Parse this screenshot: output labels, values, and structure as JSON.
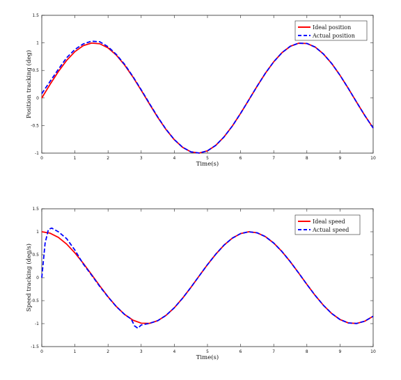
{
  "colors": {
    "ideal": "#ff0000",
    "actual": "#0000ff",
    "axis": "#262626"
  },
  "chart_data": [
    {
      "type": "line",
      "xlabel": "Time(s)",
      "ylabel": "Position tracking (deg)",
      "xlim": [
        0,
        10
      ],
      "ylim": [
        -1,
        1.5
      ],
      "xticks": [
        0,
        1,
        2,
        3,
        4,
        5,
        6,
        7,
        8,
        9,
        10
      ],
      "yticks": [
        -1,
        -0.5,
        0,
        0.5,
        1,
        1.5
      ],
      "grid": false,
      "legend_position": "top-right",
      "x": [
        0,
        0.25,
        0.5,
        0.75,
        1,
        1.25,
        1.5,
        1.75,
        2,
        2.25,
        2.5,
        2.75,
        3,
        3.25,
        3.5,
        3.75,
        4,
        4.25,
        4.5,
        4.75,
        5,
        5.25,
        5.5,
        5.75,
        6,
        6.25,
        6.5,
        6.75,
        7,
        7.25,
        7.5,
        7.75,
        8,
        8.25,
        8.5,
        8.75,
        9,
        9.25,
        9.5,
        9.75,
        10
      ],
      "series": [
        {
          "name": "Ideal position",
          "style": "solid",
          "values": [
            0,
            0.247,
            0.479,
            0.682,
            0.841,
            0.949,
            0.997,
            0.984,
            0.909,
            0.778,
            0.598,
            0.382,
            0.141,
            -0.108,
            -0.351,
            -0.572,
            -0.757,
            -0.895,
            -0.978,
            -0.999,
            -0.959,
            -0.859,
            -0.706,
            -0.509,
            -0.279,
            -0.033,
            0.215,
            0.451,
            0.657,
            0.823,
            0.938,
            0.994,
            0.989,
            0.924,
            0.798,
            0.625,
            0.412,
            0.174,
            -0.075,
            -0.32,
            -0.544
          ]
        },
        {
          "name": "Actual position",
          "style": "dashed",
          "values": [
            0.08,
            0.3,
            0.52,
            0.73,
            0.88,
            0.98,
            1.03,
            1.02,
            0.93,
            0.79,
            0.61,
            0.39,
            0.15,
            -0.1,
            -0.345,
            -0.568,
            -0.755,
            -0.894,
            -0.977,
            -0.999,
            -0.959,
            -0.859,
            -0.706,
            -0.509,
            -0.279,
            -0.033,
            0.215,
            0.451,
            0.657,
            0.823,
            0.938,
            0.994,
            0.989,
            0.924,
            0.798,
            0.625,
            0.412,
            0.174,
            -0.075,
            -0.32,
            -0.544
          ]
        }
      ]
    },
    {
      "type": "line",
      "xlabel": "Time(s)",
      "ylabel": "Speed tracking (deg/s)",
      "xlim": [
        0,
        10
      ],
      "ylim": [
        -1.5,
        1.5
      ],
      "xticks": [
        0,
        1,
        2,
        3,
        4,
        5,
        6,
        7,
        8,
        9,
        10
      ],
      "yticks": [
        -1.5,
        -1,
        -0.5,
        0,
        0.5,
        1,
        1.5
      ],
      "grid": false,
      "legend_position": "top-right",
      "x": [
        0,
        0.1,
        0.2,
        0.3,
        0.5,
        0.75,
        1,
        1.25,
        1.5,
        1.75,
        2,
        2.25,
        2.5,
        2.7,
        2.8,
        2.9,
        3,
        3.25,
        3.5,
        3.75,
        4,
        4.25,
        4.5,
        4.75,
        5,
        5.25,
        5.5,
        5.75,
        6,
        6.25,
        6.5,
        6.75,
        7,
        7.25,
        7.5,
        7.75,
        8,
        8.25,
        8.5,
        8.75,
        9,
        9.25,
        9.5,
        9.75,
        10
      ],
      "series": [
        {
          "name": "Ideal speed",
          "style": "solid",
          "x": [
            0,
            0.25,
            0.5,
            0.75,
            1,
            1.25,
            1.5,
            1.75,
            2,
            2.25,
            2.5,
            2.75,
            3,
            3.25,
            3.5,
            3.75,
            4,
            4.25,
            4.5,
            4.75,
            5,
            5.25,
            5.5,
            5.75,
            6,
            6.25,
            6.5,
            6.75,
            7,
            7.25,
            7.5,
            7.75,
            8,
            8.25,
            8.5,
            8.75,
            9,
            9.25,
            9.5,
            9.75,
            10
          ],
          "values": [
            1,
            0.969,
            0.878,
            0.732,
            0.54,
            0.315,
            0.071,
            -0.178,
            -0.416,
            -0.628,
            -0.801,
            -0.924,
            -0.99,
            -0.994,
            -0.936,
            -0.82,
            -0.654,
            -0.446,
            -0.211,
            0.038,
            0.284,
            0.511,
            0.709,
            0.861,
            0.96,
            1,
            0.977,
            0.893,
            0.754,
            0.568,
            0.347,
            0.104,
            -0.146,
            -0.386,
            -0.602,
            -0.78,
            -0.911,
            -0.985,
            -0.997,
            -0.946,
            -0.839
          ]
        },
        {
          "name": "Actual speed",
          "style": "dashed",
          "values": [
            0,
            0.75,
            1.05,
            1.08,
            1.0,
            0.85,
            0.6,
            0.3,
            0.06,
            -0.19,
            -0.42,
            -0.63,
            -0.8,
            -0.9,
            -1.05,
            -1.1,
            -1.03,
            -0.994,
            -0.936,
            -0.82,
            -0.654,
            -0.446,
            -0.211,
            0.038,
            0.284,
            0.511,
            0.709,
            0.861,
            0.96,
            1,
            0.977,
            0.893,
            0.754,
            0.568,
            0.347,
            0.104,
            -0.146,
            -0.386,
            -0.602,
            -0.78,
            -0.911,
            -0.985,
            -0.997,
            -0.946,
            -0.839
          ]
        }
      ]
    }
  ]
}
